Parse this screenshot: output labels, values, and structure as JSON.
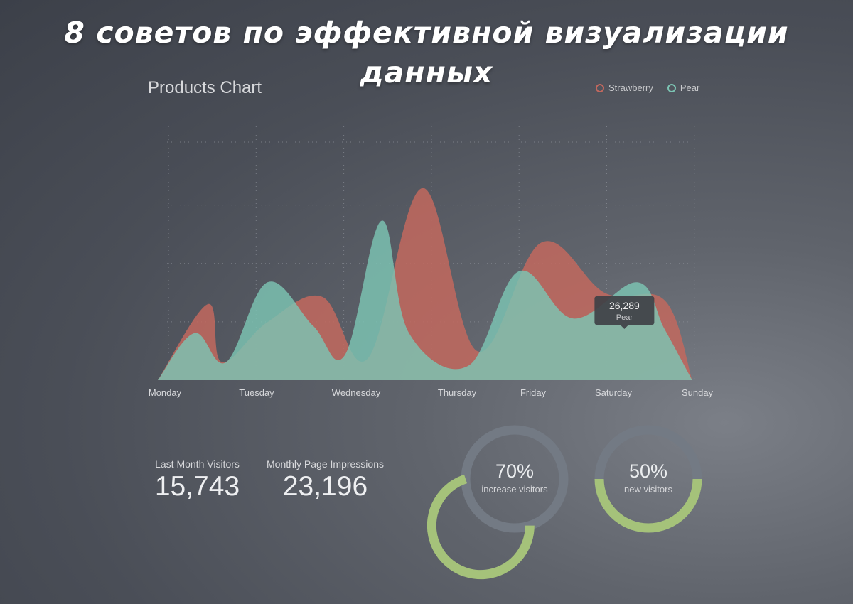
{
  "headline": "8 советов по эффективной визуализации данных",
  "chart_data": {
    "type": "area",
    "title": "Products Chart",
    "categories": [
      "Monday",
      "Tuesday",
      "Wednesday",
      "Thursday",
      "Friday",
      "Saturday",
      "Sunday"
    ],
    "x": [
      0,
      1,
      2,
      3,
      4,
      5,
      6
    ],
    "ylim": [
      0,
      70000
    ],
    "grid": true,
    "legend_placement": "top-right",
    "series": [
      {
        "name": "Strawberry",
        "color": "#c2685e",
        "points": [
          [
            0,
            0
          ],
          [
            0.55,
            21000
          ],
          [
            0.7,
            5000
          ],
          [
            1.2,
            16000
          ],
          [
            1.8,
            23000
          ],
          [
            2.3,
            6000
          ],
          [
            2.9,
            53000
          ],
          [
            3.5,
            8000
          ],
          [
            4.2,
            38000
          ],
          [
            4.9,
            24000
          ],
          [
            5.55,
            22000
          ],
          [
            5.85,
            0
          ]
        ]
      },
      {
        "name": "Pear",
        "color": "#7cc4b3",
        "points": [
          [
            0,
            0
          ],
          [
            0.4,
            13000
          ],
          [
            0.75,
            5000
          ],
          [
            1.2,
            27000
          ],
          [
            1.7,
            15000
          ],
          [
            2.05,
            7000
          ],
          [
            2.45,
            44000
          ],
          [
            2.75,
            13000
          ],
          [
            3.4,
            4000
          ],
          [
            3.95,
            30000
          ],
          [
            4.55,
            17000
          ],
          [
            5.25,
            27000
          ],
          [
            5.55,
            14000
          ],
          [
            5.85,
            0
          ]
        ]
      }
    ],
    "tooltip": {
      "value": "26,289",
      "series": "Pear",
      "x": 4.75,
      "y": 15000
    }
  },
  "stats": [
    {
      "label": "Last Month Visitors",
      "value": "15,743"
    },
    {
      "label": "Monthly Page Impressions",
      "value": "23,196"
    }
  ],
  "donuts": [
    {
      "percent_text": "70%",
      "percent": 70,
      "label": "increase visitors"
    },
    {
      "percent_text": "50%",
      "percent": 50,
      "label": "new visitors"
    }
  ],
  "colors": {
    "ring_track": "#737a84",
    "ring_fill": "#a5c27a",
    "tooltip_bg": "#3f4147"
  }
}
